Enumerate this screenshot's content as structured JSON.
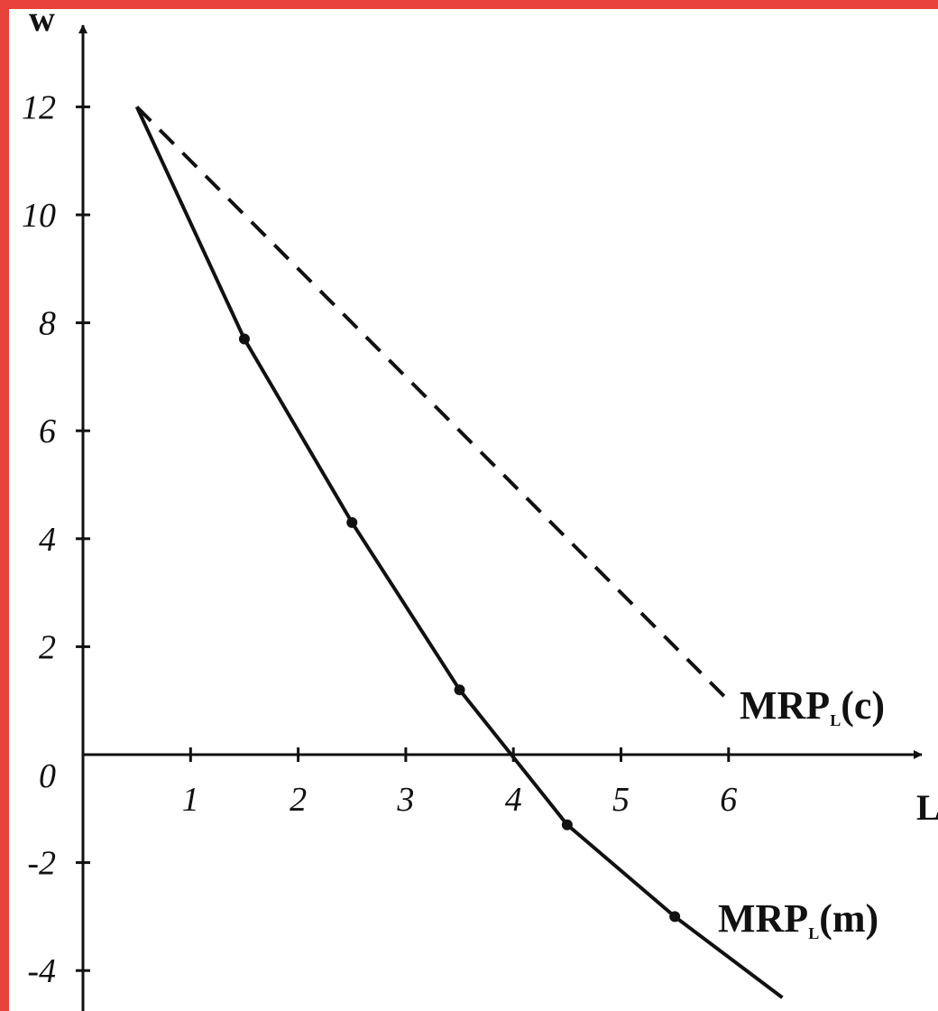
{
  "chart_data": {
    "type": "line",
    "xlabel": "L",
    "ylabel": "w",
    "xlim": [
      0,
      7
    ],
    "ylim": [
      -4.5,
      13
    ],
    "x_ticks": [
      1,
      2,
      3,
      4,
      5,
      6
    ],
    "y_ticks": [
      -4,
      -2,
      0,
      2,
      4,
      6,
      8,
      10,
      12
    ],
    "origin_label": "0",
    "grid": false,
    "series": [
      {
        "name": "MRP_L(m)",
        "label_main": "MRP",
        "label_sub": "L",
        "label_tail": "(m)",
        "style": "solid",
        "markers": true,
        "points": [
          [
            0.5,
            12
          ],
          [
            1.5,
            7.7
          ],
          [
            2.5,
            4.3
          ],
          [
            3.5,
            1.2
          ],
          [
            4.5,
            -1.3
          ],
          [
            5.5,
            -3.0
          ],
          [
            6.5,
            -4.5
          ]
        ]
      },
      {
        "name": "MRP_L(c)",
        "label_main": "MRP",
        "label_sub": "L",
        "label_tail": "(c)",
        "style": "dashed",
        "markers": false,
        "points": [
          [
            0.5,
            12
          ],
          [
            6.0,
            1.0
          ]
        ]
      }
    ],
    "colors": {
      "line": "#111111",
      "axis": "#111111",
      "border": "#e8403a"
    }
  }
}
